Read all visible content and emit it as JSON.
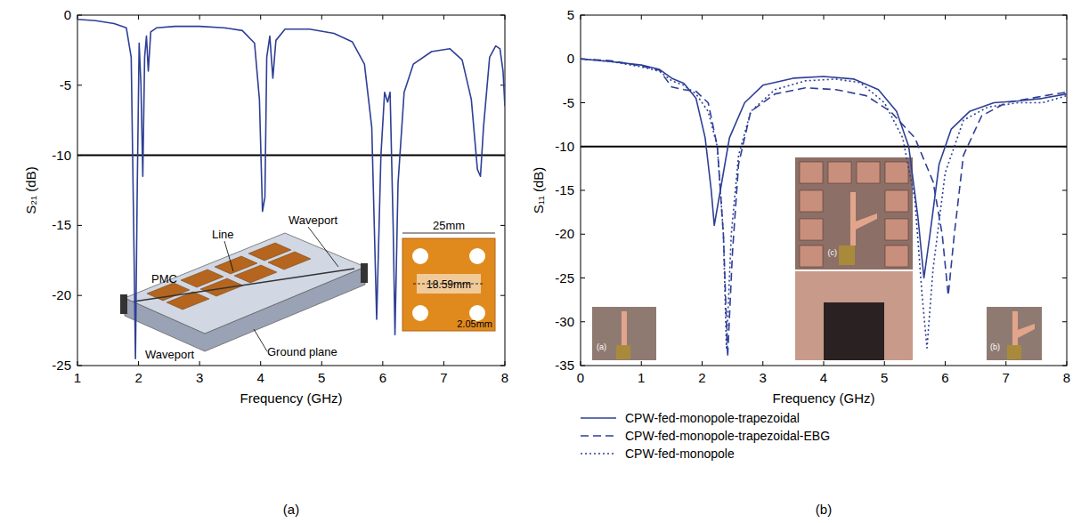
{
  "chart_data": [
    {
      "type": "line",
      "panel_label": "(a)",
      "x_label": "Frequency (GHz)",
      "y_label": "S₂₁ (dB)",
      "xlim": [
        1,
        8
      ],
      "xticks": [
        1,
        2,
        3,
        4,
        5,
        6,
        7,
        8
      ],
      "ylim": [
        -25,
        0
      ],
      "yticks": [
        -25,
        -20,
        -15,
        -10,
        -5,
        0
      ],
      "grid": false,
      "reference_line": -10,
      "annotations": [
        "Waveport",
        "Line",
        "PMC",
        "Waveport",
        "Ground plane",
        "25mm",
        "18.59mm",
        "2.05mm"
      ],
      "series": [
        {
          "color": "#2e3f96",
          "line_style": "solid",
          "x": [
            1.0,
            1.3,
            1.6,
            1.8,
            1.88,
            1.92,
            1.95,
            1.98,
            2.01,
            2.04,
            2.07,
            2.1,
            2.13,
            2.16,
            2.2,
            2.3,
            2.6,
            3.0,
            3.4,
            3.7,
            3.9,
            3.98,
            4.03,
            4.07,
            4.1,
            4.15,
            4.2,
            4.25,
            4.4,
            4.8,
            5.2,
            5.5,
            5.7,
            5.82,
            5.9,
            5.97,
            6.03,
            6.08,
            6.12,
            6.17,
            6.2,
            6.25,
            6.35,
            6.5,
            6.8,
            7.1,
            7.3,
            7.45,
            7.55,
            7.6,
            7.65,
            7.75,
            7.85,
            7.92,
            7.97,
            8.0
          ],
          "values": [
            -0.3,
            -0.4,
            -0.6,
            -0.9,
            -3,
            -15,
            -24.5,
            -12,
            -2,
            -5,
            -11.5,
            -3,
            -1.5,
            -4,
            -1.2,
            -0.9,
            -0.8,
            -0.8,
            -0.9,
            -1.1,
            -2,
            -6,
            -14,
            -13,
            -3,
            -1.5,
            -4.5,
            -1.8,
            -1.0,
            -1.0,
            -1.3,
            -1.9,
            -3.5,
            -8,
            -21.7,
            -10,
            -5.5,
            -6.2,
            -5.5,
            -15,
            -22.8,
            -12,
            -5.5,
            -3.5,
            -2.6,
            -2.4,
            -3.2,
            -6,
            -11,
            -11.5,
            -8,
            -3,
            -2.2,
            -2.4,
            -4,
            -6.5
          ]
        }
      ]
    },
    {
      "type": "line",
      "panel_label": "(b)",
      "x_label": "Frequency (GHz)",
      "y_label": "S₁₁ (dB)",
      "xlim": [
        0,
        8
      ],
      "xticks": [
        0,
        1,
        2,
        3,
        4,
        5,
        6,
        7,
        8
      ],
      "ylim": [
        -35,
        5
      ],
      "yticks": [
        -35,
        -30,
        -25,
        -20,
        -15,
        -10,
        -5,
        0,
        5
      ],
      "grid": false,
      "reference_line": -10,
      "legend": "bottom",
      "annotations": [
        "(c)",
        "(a)",
        "(b)"
      ],
      "series": [
        {
          "name": "CPW-fed-monopole-trapezoidal",
          "color": "#2e3f96",
          "line_style": "solid",
          "x": [
            0,
            0.5,
            1.0,
            1.3,
            1.5,
            1.7,
            1.9,
            2.05,
            2.15,
            2.2,
            2.3,
            2.45,
            2.7,
            3.0,
            3.5,
            4.0,
            4.5,
            4.9,
            5.2,
            5.4,
            5.55,
            5.65,
            5.75,
            5.9,
            6.1,
            6.4,
            6.8,
            7.2,
            7.6,
            8.0
          ],
          "values": [
            0,
            -0.3,
            -0.7,
            -1.2,
            -2.2,
            -2.8,
            -4.5,
            -9,
            -15,
            -19,
            -15,
            -9,
            -5,
            -3,
            -2.2,
            -2,
            -2.3,
            -3.5,
            -6,
            -10,
            -18,
            -25,
            -20,
            -12,
            -8,
            -6,
            -5,
            -4.8,
            -4.5,
            -4
          ]
        },
        {
          "name": "CPW-fed-monopole-trapezoidal-EBG",
          "color": "#2e3f96",
          "line_style": "dashed",
          "x": [
            0,
            0.5,
            1.0,
            1.3,
            1.5,
            1.7,
            1.9,
            2.1,
            2.25,
            2.35,
            2.42,
            2.5,
            2.6,
            2.8,
            3.2,
            3.7,
            4.2,
            4.7,
            5.1,
            5.5,
            5.8,
            5.95,
            6.05,
            6.15,
            6.3,
            6.6,
            7.0,
            7.4,
            7.8,
            8.0
          ],
          "values": [
            0,
            -0.2,
            -0.8,
            -1.3,
            -3.2,
            -3.5,
            -3.7,
            -5,
            -10,
            -20,
            -34,
            -22,
            -12,
            -6,
            -4,
            -3.3,
            -3.5,
            -4.2,
            -6,
            -9,
            -14,
            -20,
            -27,
            -20,
            -11,
            -6.5,
            -5,
            -4.5,
            -4,
            -3.8
          ]
        },
        {
          "name": "CPW-fed-monopole",
          "color": "#2e3f96",
          "line_style": "dotted",
          "x": [
            0,
            0.5,
            1.0,
            1.3,
            1.5,
            1.7,
            1.9,
            2.1,
            2.25,
            2.35,
            2.4,
            2.48,
            2.6,
            2.8,
            3.2,
            3.7,
            4.2,
            4.6,
            5.0,
            5.3,
            5.5,
            5.62,
            5.7,
            5.8,
            6.0,
            6.3,
            6.7,
            7.2,
            7.6,
            8.0
          ],
          "values": [
            0,
            -0.3,
            -0.9,
            -1.4,
            -2.5,
            -3,
            -4,
            -6,
            -10,
            -20,
            -33,
            -20,
            -11,
            -6,
            -3.5,
            -2.5,
            -2.3,
            -2.7,
            -5,
            -9,
            -16,
            -27,
            -33,
            -24,
            -13,
            -7,
            -5.5,
            -5,
            -5,
            -4.2
          ]
        }
      ]
    }
  ]
}
